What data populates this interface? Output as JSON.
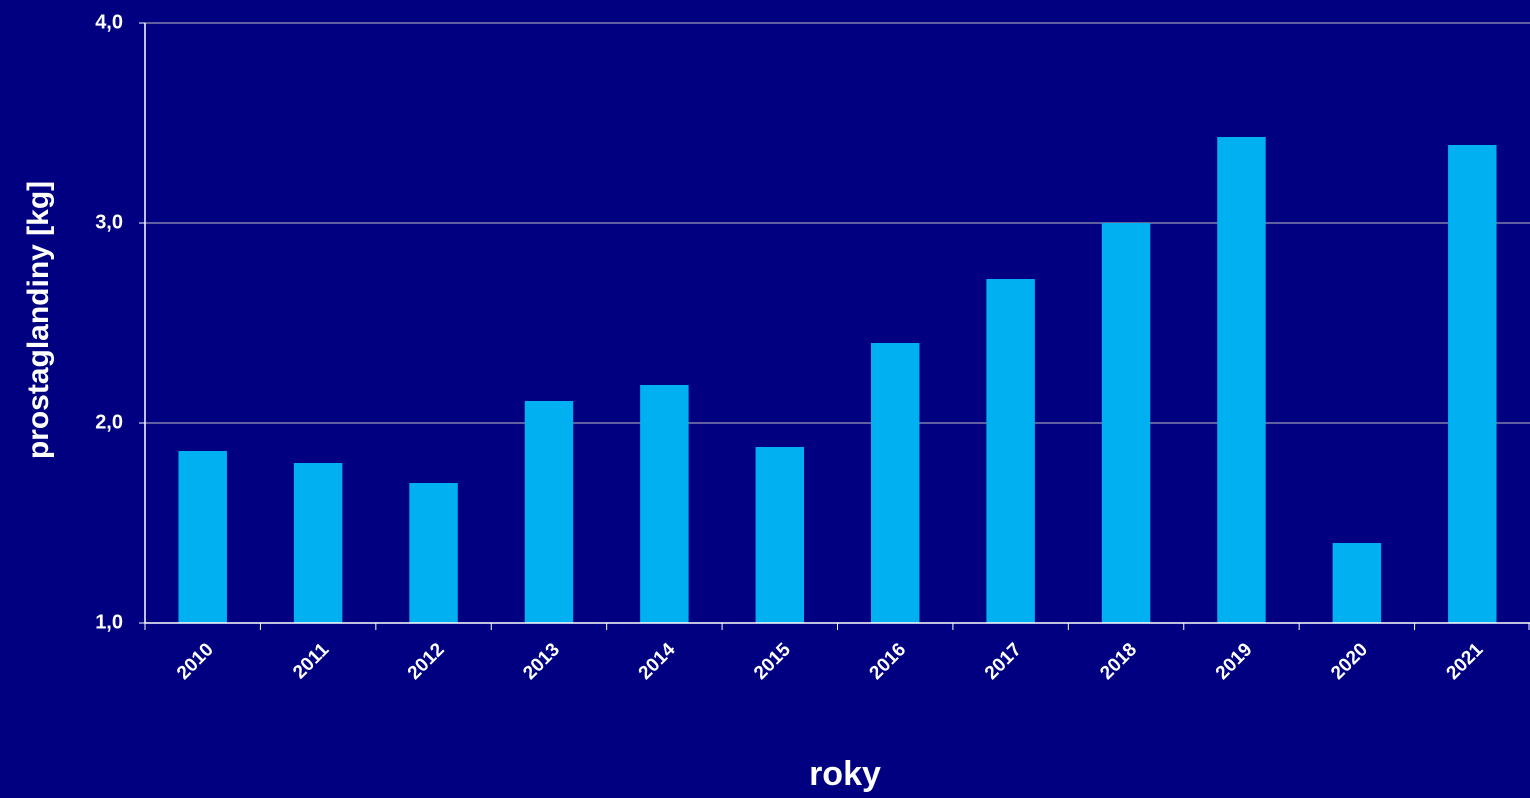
{
  "chart_data": {
    "type": "bar",
    "x_label": "roky",
    "y_label": "prostaglandiny [kg]",
    "categories": [
      "2010",
      "2011",
      "2012",
      "2013",
      "2014",
      "2015",
      "2016",
      "2017",
      "2018",
      "2019",
      "2020",
      "2021"
    ],
    "values": [
      1.86,
      1.8,
      1.7,
      2.11,
      2.19,
      1.88,
      2.4,
      2.72,
      3.0,
      3.43,
      1.4,
      3.39
    ],
    "color": "#00b0f0",
    "ylim": [
      1,
      4
    ],
    "yticks": [
      {
        "value": 1,
        "label": "1,0"
      },
      {
        "value": 2,
        "label": "2,0"
      },
      {
        "value": 3,
        "label": "3,0"
      },
      {
        "value": 4,
        "label": "4,0"
      }
    ],
    "grid": true
  }
}
